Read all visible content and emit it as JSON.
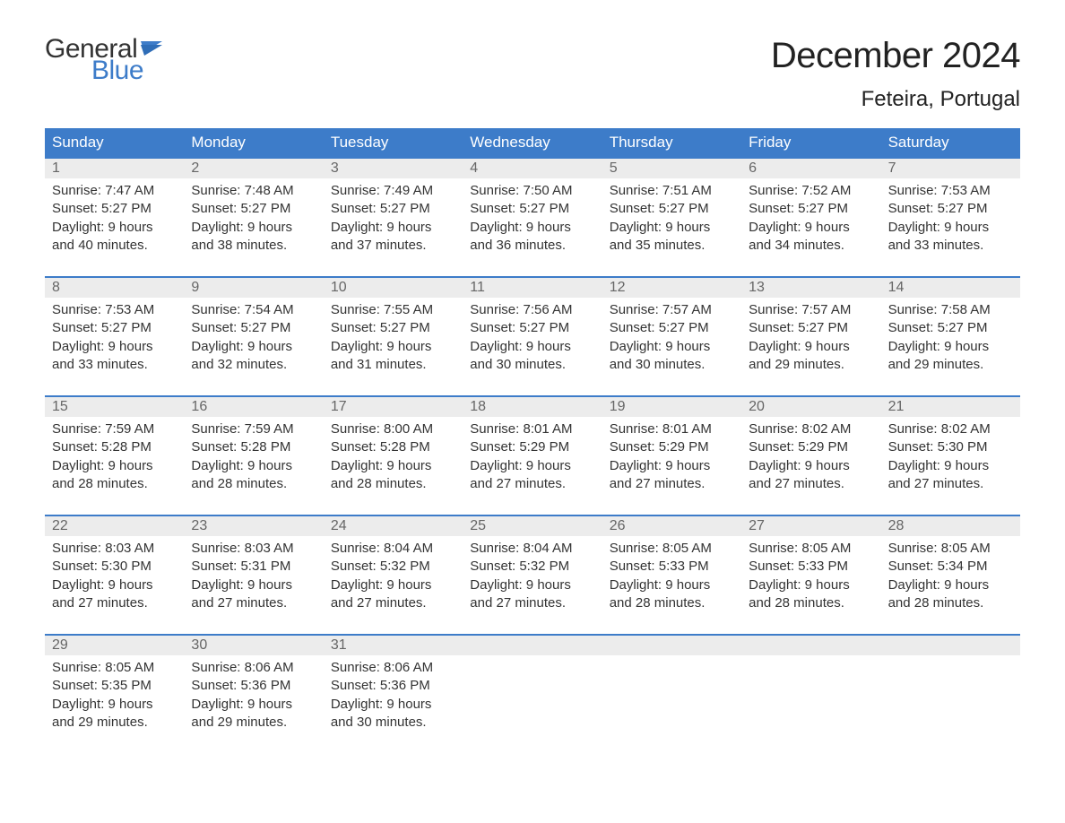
{
  "brand": {
    "word1": "General",
    "word2": "Blue",
    "word1_color": "#333333",
    "word2_color": "#3d7cc9",
    "flag_color": "#3d7cc9",
    "fontsize": 30
  },
  "header": {
    "month_title": "December 2024",
    "location": "Feteira, Portugal",
    "title_fontsize": 40,
    "location_fontsize": 24,
    "title_color": "#222222"
  },
  "calendar": {
    "header_bg": "#3d7cc9",
    "header_fg": "#ffffff",
    "band_bg": "#ececec",
    "band_fg": "#666666",
    "body_fg": "#333333",
    "row_border_color": "#3d7cc9",
    "weekday_fontsize": 17,
    "daynum_fontsize": 16,
    "body_fontsize": 15,
    "weekdays": [
      "Sunday",
      "Monday",
      "Tuesday",
      "Wednesday",
      "Thursday",
      "Friday",
      "Saturday"
    ],
    "weeks": [
      [
        {
          "num": "1",
          "sunrise": "Sunrise: 7:47 AM",
          "sunset": "Sunset: 5:27 PM",
          "day1": "Daylight: 9 hours",
          "day2": "and 40 minutes."
        },
        {
          "num": "2",
          "sunrise": "Sunrise: 7:48 AM",
          "sunset": "Sunset: 5:27 PM",
          "day1": "Daylight: 9 hours",
          "day2": "and 38 minutes."
        },
        {
          "num": "3",
          "sunrise": "Sunrise: 7:49 AM",
          "sunset": "Sunset: 5:27 PM",
          "day1": "Daylight: 9 hours",
          "day2": "and 37 minutes."
        },
        {
          "num": "4",
          "sunrise": "Sunrise: 7:50 AM",
          "sunset": "Sunset: 5:27 PM",
          "day1": "Daylight: 9 hours",
          "day2": "and 36 minutes."
        },
        {
          "num": "5",
          "sunrise": "Sunrise: 7:51 AM",
          "sunset": "Sunset: 5:27 PM",
          "day1": "Daylight: 9 hours",
          "day2": "and 35 minutes."
        },
        {
          "num": "6",
          "sunrise": "Sunrise: 7:52 AM",
          "sunset": "Sunset: 5:27 PM",
          "day1": "Daylight: 9 hours",
          "day2": "and 34 minutes."
        },
        {
          "num": "7",
          "sunrise": "Sunrise: 7:53 AM",
          "sunset": "Sunset: 5:27 PM",
          "day1": "Daylight: 9 hours",
          "day2": "and 33 minutes."
        }
      ],
      [
        {
          "num": "8",
          "sunrise": "Sunrise: 7:53 AM",
          "sunset": "Sunset: 5:27 PM",
          "day1": "Daylight: 9 hours",
          "day2": "and 33 minutes."
        },
        {
          "num": "9",
          "sunrise": "Sunrise: 7:54 AM",
          "sunset": "Sunset: 5:27 PM",
          "day1": "Daylight: 9 hours",
          "day2": "and 32 minutes."
        },
        {
          "num": "10",
          "sunrise": "Sunrise: 7:55 AM",
          "sunset": "Sunset: 5:27 PM",
          "day1": "Daylight: 9 hours",
          "day2": "and 31 minutes."
        },
        {
          "num": "11",
          "sunrise": "Sunrise: 7:56 AM",
          "sunset": "Sunset: 5:27 PM",
          "day1": "Daylight: 9 hours",
          "day2": "and 30 minutes."
        },
        {
          "num": "12",
          "sunrise": "Sunrise: 7:57 AM",
          "sunset": "Sunset: 5:27 PM",
          "day1": "Daylight: 9 hours",
          "day2": "and 30 minutes."
        },
        {
          "num": "13",
          "sunrise": "Sunrise: 7:57 AM",
          "sunset": "Sunset: 5:27 PM",
          "day1": "Daylight: 9 hours",
          "day2": "and 29 minutes."
        },
        {
          "num": "14",
          "sunrise": "Sunrise: 7:58 AM",
          "sunset": "Sunset: 5:27 PM",
          "day1": "Daylight: 9 hours",
          "day2": "and 29 minutes."
        }
      ],
      [
        {
          "num": "15",
          "sunrise": "Sunrise: 7:59 AM",
          "sunset": "Sunset: 5:28 PM",
          "day1": "Daylight: 9 hours",
          "day2": "and 28 minutes."
        },
        {
          "num": "16",
          "sunrise": "Sunrise: 7:59 AM",
          "sunset": "Sunset: 5:28 PM",
          "day1": "Daylight: 9 hours",
          "day2": "and 28 minutes."
        },
        {
          "num": "17",
          "sunrise": "Sunrise: 8:00 AM",
          "sunset": "Sunset: 5:28 PM",
          "day1": "Daylight: 9 hours",
          "day2": "and 28 minutes."
        },
        {
          "num": "18",
          "sunrise": "Sunrise: 8:01 AM",
          "sunset": "Sunset: 5:29 PM",
          "day1": "Daylight: 9 hours",
          "day2": "and 27 minutes."
        },
        {
          "num": "19",
          "sunrise": "Sunrise: 8:01 AM",
          "sunset": "Sunset: 5:29 PM",
          "day1": "Daylight: 9 hours",
          "day2": "and 27 minutes."
        },
        {
          "num": "20",
          "sunrise": "Sunrise: 8:02 AM",
          "sunset": "Sunset: 5:29 PM",
          "day1": "Daylight: 9 hours",
          "day2": "and 27 minutes."
        },
        {
          "num": "21",
          "sunrise": "Sunrise: 8:02 AM",
          "sunset": "Sunset: 5:30 PM",
          "day1": "Daylight: 9 hours",
          "day2": "and 27 minutes."
        }
      ],
      [
        {
          "num": "22",
          "sunrise": "Sunrise: 8:03 AM",
          "sunset": "Sunset: 5:30 PM",
          "day1": "Daylight: 9 hours",
          "day2": "and 27 minutes."
        },
        {
          "num": "23",
          "sunrise": "Sunrise: 8:03 AM",
          "sunset": "Sunset: 5:31 PM",
          "day1": "Daylight: 9 hours",
          "day2": "and 27 minutes."
        },
        {
          "num": "24",
          "sunrise": "Sunrise: 8:04 AM",
          "sunset": "Sunset: 5:32 PM",
          "day1": "Daylight: 9 hours",
          "day2": "and 27 minutes."
        },
        {
          "num": "25",
          "sunrise": "Sunrise: 8:04 AM",
          "sunset": "Sunset: 5:32 PM",
          "day1": "Daylight: 9 hours",
          "day2": "and 27 minutes."
        },
        {
          "num": "26",
          "sunrise": "Sunrise: 8:05 AM",
          "sunset": "Sunset: 5:33 PM",
          "day1": "Daylight: 9 hours",
          "day2": "and 28 minutes."
        },
        {
          "num": "27",
          "sunrise": "Sunrise: 8:05 AM",
          "sunset": "Sunset: 5:33 PM",
          "day1": "Daylight: 9 hours",
          "day2": "and 28 minutes."
        },
        {
          "num": "28",
          "sunrise": "Sunrise: 8:05 AM",
          "sunset": "Sunset: 5:34 PM",
          "day1": "Daylight: 9 hours",
          "day2": "and 28 minutes."
        }
      ],
      [
        {
          "num": "29",
          "sunrise": "Sunrise: 8:05 AM",
          "sunset": "Sunset: 5:35 PM",
          "day1": "Daylight: 9 hours",
          "day2": "and 29 minutes."
        },
        {
          "num": "30",
          "sunrise": "Sunrise: 8:06 AM",
          "sunset": "Sunset: 5:36 PM",
          "day1": "Daylight: 9 hours",
          "day2": "and 29 minutes."
        },
        {
          "num": "31",
          "sunrise": "Sunrise: 8:06 AM",
          "sunset": "Sunset: 5:36 PM",
          "day1": "Daylight: 9 hours",
          "day2": "and 30 minutes."
        },
        {
          "empty": true
        },
        {
          "empty": true
        },
        {
          "empty": true
        },
        {
          "empty": true
        }
      ]
    ]
  }
}
